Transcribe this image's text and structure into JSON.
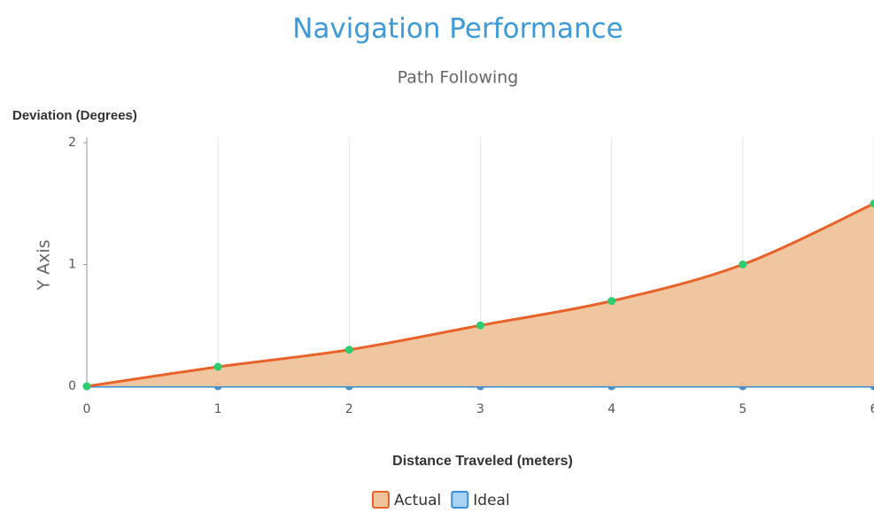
{
  "chart_data": {
    "type": "area",
    "title": "Navigation Performance",
    "subtitle": "Path Following",
    "y_label_top": "Deviation (Degrees)",
    "y_axis_title": "Y Axis",
    "x_axis_title": "Distance Traveled (meters)",
    "x": [
      0,
      1,
      2,
      3,
      4,
      5,
      6
    ],
    "xlim": [
      0,
      6
    ],
    "xticks": [
      0,
      1,
      2,
      3,
      4,
      5,
      6
    ],
    "ylim": [
      0,
      2
    ],
    "yticks": [
      0,
      1,
      2
    ],
    "grid": true,
    "series": [
      {
        "name": "Actual",
        "color": "#e8622a",
        "fill_color": "#efc39b",
        "marker_color": "#2ecc71",
        "values": [
          0,
          0.16,
          0.3,
          0.5,
          0.7,
          1.0,
          1.5
        ]
      },
      {
        "name": "Ideal",
        "color": "#3a8fd4",
        "fill_color": "#a9d4f5",
        "marker_color": "#4a90c8",
        "values": [
          0,
          0,
          0,
          0,
          0,
          0,
          0
        ]
      }
    ]
  }
}
